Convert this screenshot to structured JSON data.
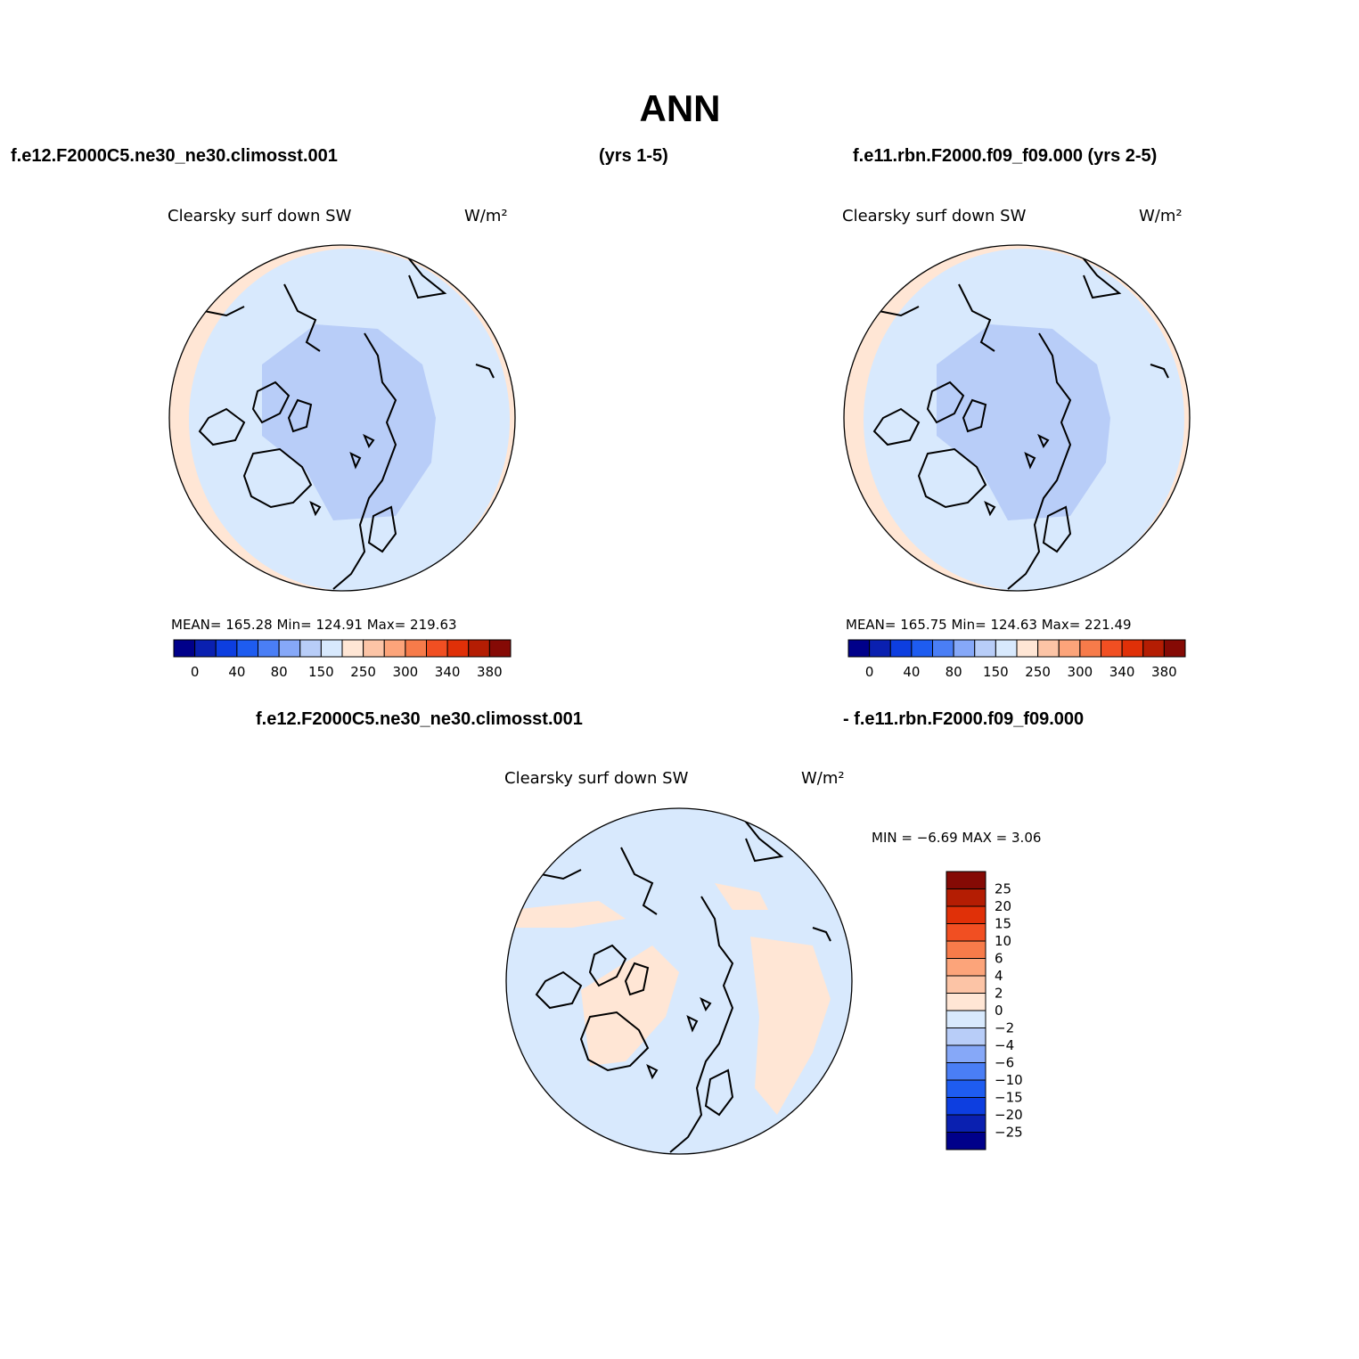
{
  "title": "ANN",
  "header": {
    "case1": "f.e12.F2000C5.ne30_ne30.climosst.001",
    "years1": "(yrs 1-5)",
    "case2": "f.e11.rbn.F2000.f09_f09.000 (yrs 2-5)"
  },
  "panels": [
    {
      "variable": "Clearsky surf down SW",
      "units": "W/m²",
      "stats": "MEAN= 165.28   Min= 124.91   Max= 219.63",
      "colorbar": {
        "labels": [
          "0",
          "40",
          "80",
          "150",
          "250",
          "300",
          "340",
          "380"
        ]
      }
    },
    {
      "variable": "Clearsky surf down SW",
      "units": "W/m²",
      "stats": "MEAN= 165.75   Min= 124.63   Max= 221.49",
      "colorbar": {
        "labels": [
          "0",
          "40",
          "80",
          "150",
          "250",
          "300",
          "340",
          "380"
        ]
      }
    }
  ],
  "difference": {
    "case1": "f.e12.F2000C5.ne30_ne30.climosst.001",
    "case2": "- f.e11.rbn.F2000.f09_f09.000",
    "variable": "Clearsky surf down SW",
    "units": "W/m²",
    "stats": "MIN =   −6.69 MAX =    3.06",
    "colorbar": {
      "labels": [
        "25",
        "20",
        "15",
        "10",
        "6",
        "4",
        "2",
        "0",
        "−2",
        "−4",
        "−6",
        "−10",
        "−15",
        "−20",
        "−25"
      ]
    }
  },
  "palette": [
    "#00008a",
    "#0a20b0",
    "#0d3ee0",
    "#1e5cf0",
    "#4a7ef5",
    "#86a8f8",
    "#b8cdf8",
    "#d8e9fd",
    "#ffe6d5",
    "#fcc4a6",
    "#fca47a",
    "#f77b4a",
    "#f14f22",
    "#e03008",
    "#b41d03",
    "#850a05"
  ]
}
